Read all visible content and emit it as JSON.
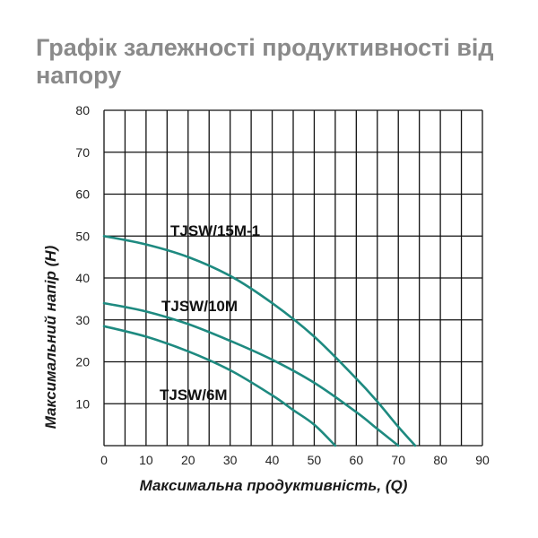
{
  "chart_data": {
    "type": "line",
    "title": "Графік залежності продуктивності від напору",
    "xlabel": "Максимальна продуктивність, (Q)",
    "ylabel": "Максимальний напір (H)",
    "xlim": [
      0,
      90
    ],
    "ylim": [
      0,
      80
    ],
    "x_ticks": [
      0,
      10,
      20,
      30,
      40,
      50,
      60,
      70,
      80,
      90
    ],
    "y_ticks": [
      10,
      20,
      30,
      40,
      50,
      60,
      70,
      80
    ],
    "grid": true,
    "line_color": "#1e8a80",
    "series": [
      {
        "name": "TJSW/15M-1",
        "x": [
          0,
          10,
          20,
          30,
          40,
          50,
          60,
          65,
          70,
          74
        ],
        "y": [
          50,
          48,
          45,
          40.5,
          34,
          26,
          16,
          10.5,
          4.5,
          0
        ]
      },
      {
        "name": "TJSW/10M",
        "x": [
          0,
          10,
          20,
          30,
          40,
          50,
          60,
          65,
          70
        ],
        "y": [
          34,
          32,
          29,
          25,
          20.5,
          15,
          8,
          4,
          0
        ]
      },
      {
        "name": "TJSW/6M",
        "x": [
          0,
          10,
          20,
          30,
          40,
          45,
          50,
          55
        ],
        "y": [
          28.5,
          26,
          22.5,
          18,
          12,
          8.5,
          5,
          0
        ]
      }
    ]
  }
}
